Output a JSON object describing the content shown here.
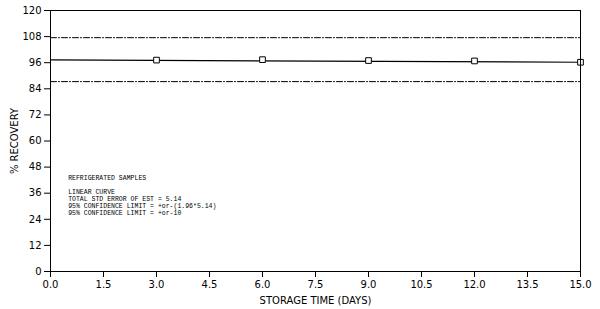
{
  "chart_data": {
    "type": "line",
    "xlabel": "STORAGE TIME (DAYS)",
    "ylabel": "% RECOVERY",
    "xlim": [
      0.0,
      15.0
    ],
    "ylim": [
      0,
      120
    ],
    "xticks": [
      {
        "value": 0.0,
        "label": "0.0"
      },
      1.5,
      {
        "value": 3.0,
        "label": "3.0"
      },
      4.5,
      {
        "value": 6.0,
        "label": "6.0"
      },
      7.5,
      {
        "value": 9.0,
        "label": "9.0"
      },
      10.5,
      {
        "value": 12.0,
        "label": "12.0"
      },
      13.5,
      {
        "value": 15.0,
        "label": "15.0"
      }
    ],
    "yticks": [
      0,
      12,
      24,
      36,
      48,
      60,
      72,
      84,
      96,
      108,
      120
    ],
    "grid": false,
    "series": [
      {
        "type": "line",
        "line_style": "dashdot",
        "color": "#000000",
        "x": [
          0.0,
          15.0
        ],
        "values": [
          107.5,
          107.5
        ]
      },
      {
        "type": "line",
        "line_style": "dashdot",
        "color": "#000000",
        "x": [
          0.0,
          15.0
        ],
        "values": [
          87.3,
          87.3
        ]
      },
      {
        "type": "line",
        "line_style": "solid",
        "color": "#000000",
        "x": [
          0.0,
          15.0
        ],
        "values": [
          97.3,
          96.2
        ]
      },
      {
        "type": "scatter",
        "marker": "square",
        "color": "#000000",
        "x": [
          3.0,
          6.0,
          9.0,
          12.0,
          15.0
        ],
        "values": [
          97.2,
          97.4,
          97.0,
          96.8,
          96.2
        ]
      }
    ],
    "annotations": [
      {
        "x": 0.5,
        "y": 44,
        "text": "REFRIGERATED SAMPLES"
      },
      {
        "x": 0.5,
        "y": 37.6,
        "text": "LINEAR CURVE"
      },
      {
        "x": 0.5,
        "y": 34.4,
        "text": "TOTAL STD ERROR OF EST = 5.14"
      },
      {
        "x": 0.5,
        "y": 31.2,
        "text": "95% CONFIDENCE LIMIT = +or-(1.96*5.14)"
      },
      {
        "x": 0.5,
        "y": 28.0,
        "text": "95% CONFIDENCE LIMIT = +or-10"
      }
    ]
  }
}
